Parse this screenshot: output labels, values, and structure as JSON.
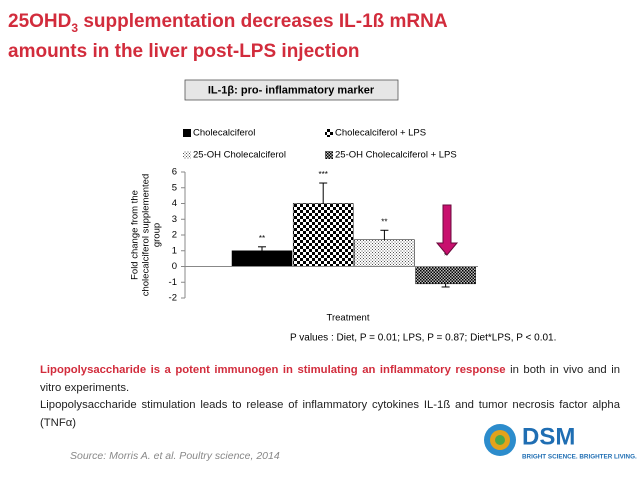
{
  "slide": {
    "title_parts": [
      "25OHD",
      "3",
      " supplementation decreases IL-1ß mRNA",
      "amounts in the liver post-LPS injection"
    ],
    "marker_box": "IL-1β: pro- inflammatory marker",
    "pvalues": "P values : Diet, P = 0.01; LPS, P = 0.87; Diet*LPS, P < 0.01.",
    "body": [
      {
        "bold": "Lipopolysaccharide is a potent immunogen in stimulating an inflammatory response",
        "rest": " in both in vivo and in vitro experiments."
      },
      {
        "bold": "",
        "rest": "Lipopolysaccharide stimulation leads to release of inflammatory cytokines IL-1ß and tumor necrosis factor alpha (TNFα)"
      }
    ],
    "source": "Source: Morris  A. et al. Poultry science, 2014",
    "logo": {
      "name": "DSM",
      "tagline": "BRIGHT SCIENCE. BRIGHTER LIVING."
    }
  },
  "chart_data": {
    "type": "bar",
    "xlabel": "Treatment",
    "ylabel_lines": [
      "Fold change from the",
      "cholecalciferol supplemented",
      "group"
    ],
    "ylim": [
      -2,
      6
    ],
    "yticks": [
      -2,
      -1,
      0,
      1,
      2,
      3,
      4,
      5,
      6
    ],
    "legend": "top",
    "series": [
      {
        "name": "Cholecalciferol",
        "color": "#000000",
        "pattern": "solid",
        "values": [
          1.0
        ],
        "errors": [
          0.25
        ],
        "significance": [
          "**"
        ]
      },
      {
        "name": "Cholecalciferol + LPS",
        "color": "#000000",
        "pattern": "checker",
        "values": [
          4.0
        ],
        "errors": [
          1.3
        ],
        "significance": [
          "***"
        ]
      },
      {
        "name": "25-OH Cholecalciferol",
        "color": "#555555",
        "pattern": "dots",
        "values": [
          1.7
        ],
        "errors": [
          0.6
        ],
        "significance": [
          "**"
        ]
      },
      {
        "name": "25-OH Cholecalciferol + LPS",
        "color": "#000000",
        "pattern": "fine",
        "values": [
          -1.1
        ],
        "errors": [
          0.2
        ],
        "significance": [
          "*"
        ]
      }
    ]
  }
}
